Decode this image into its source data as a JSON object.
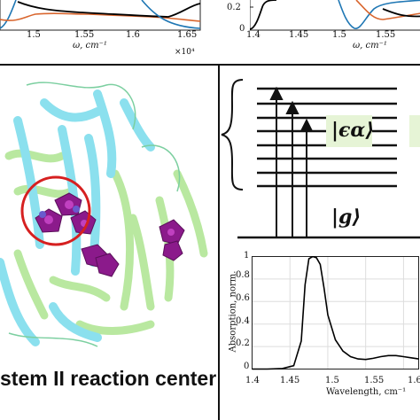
{
  "figure": {
    "top_left_panel": {
      "x_ticks": [
        "1.5",
        "1.55",
        "1.6",
        "1.65"
      ],
      "x_label": "ω, cm⁻¹",
      "x_multiplier": "×10⁴"
    },
    "top_right_panel": {
      "y_ticks": [
        "0.2",
        "0"
      ],
      "x_ticks": [
        "1.4",
        "1.45",
        "1.5",
        "1.55"
      ],
      "x_label": "ω, cm⁻¹"
    },
    "structure_panel": {
      "caption": "stem II reaction center"
    },
    "level_diagram": {
      "excited_state_label": "|ϵα⟩",
      "ground_state_label": "|g⟩"
    },
    "absorption_plot": {
      "y_label": "Absorption, norm.",
      "x_label": "Wavelength, cm⁻¹",
      "y_ticks": [
        "1",
        "0.8",
        "0.6",
        "0.4",
        "0.2",
        "0"
      ],
      "x_ticks": [
        "1.4",
        "1.45",
        "1.5",
        "1.55",
        "1.6"
      ],
      "curve_color": "#000000"
    },
    "colors": {
      "blue_series": "#1f77b4",
      "orange_series": "#d9662e",
      "black_series": "#000000",
      "protein_cyan": "#8be0ee",
      "protein_green": "#b9e8a0",
      "pigment_purple": "#8b1a8b",
      "highlight_circle": "#d62020",
      "state_box": "#e6f4d6"
    }
  },
  "chart_data": {
    "type": "line",
    "title": "",
    "xlabel": "Wavelength, cm⁻¹",
    "ylabel": "Absorption, norm.",
    "xlim": [
      1.4,
      1.62
    ],
    "ylim": [
      0,
      1
    ],
    "series": [
      {
        "x": [
          1.4,
          1.42,
          1.44,
          1.455,
          1.465,
          1.47,
          1.475,
          1.48,
          1.485,
          1.49,
          1.495,
          1.5,
          1.51,
          1.52,
          1.53,
          1.54,
          1.55,
          1.56,
          1.57,
          1.58,
          1.59,
          1.6,
          1.61,
          1.62
        ],
        "y": [
          0.0,
          0.0,
          0.005,
          0.03,
          0.25,
          0.75,
          0.98,
          1.0,
          0.99,
          0.93,
          0.72,
          0.48,
          0.26,
          0.16,
          0.11,
          0.09,
          0.085,
          0.095,
          0.11,
          0.12,
          0.12,
          0.11,
          0.1,
          0.09
        ]
      }
    ]
  }
}
